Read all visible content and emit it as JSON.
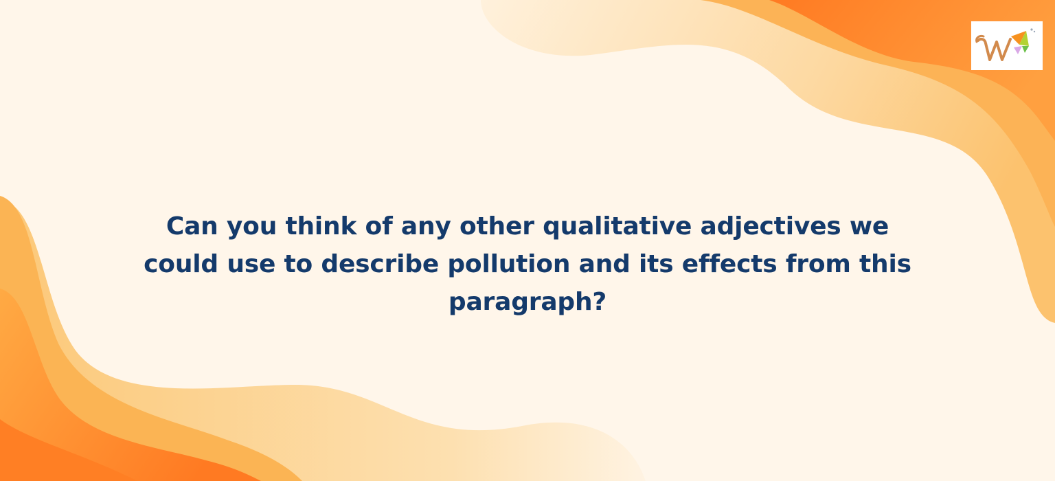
{
  "slide": {
    "question_lines": [
      "Can you think of any other qualitative adjectives we",
      "could use to describe pollution and its effects from this",
      "paragraph?"
    ],
    "logo_icon": "w-brand-logo-icon"
  },
  "colors": {
    "background": "#fff6ea",
    "text": "#143a6b",
    "wave_light": "#fdd493",
    "wave_mid": "#fbb454",
    "wave_orange": "#ff8a2b",
    "wave_deep": "#ff7420"
  }
}
